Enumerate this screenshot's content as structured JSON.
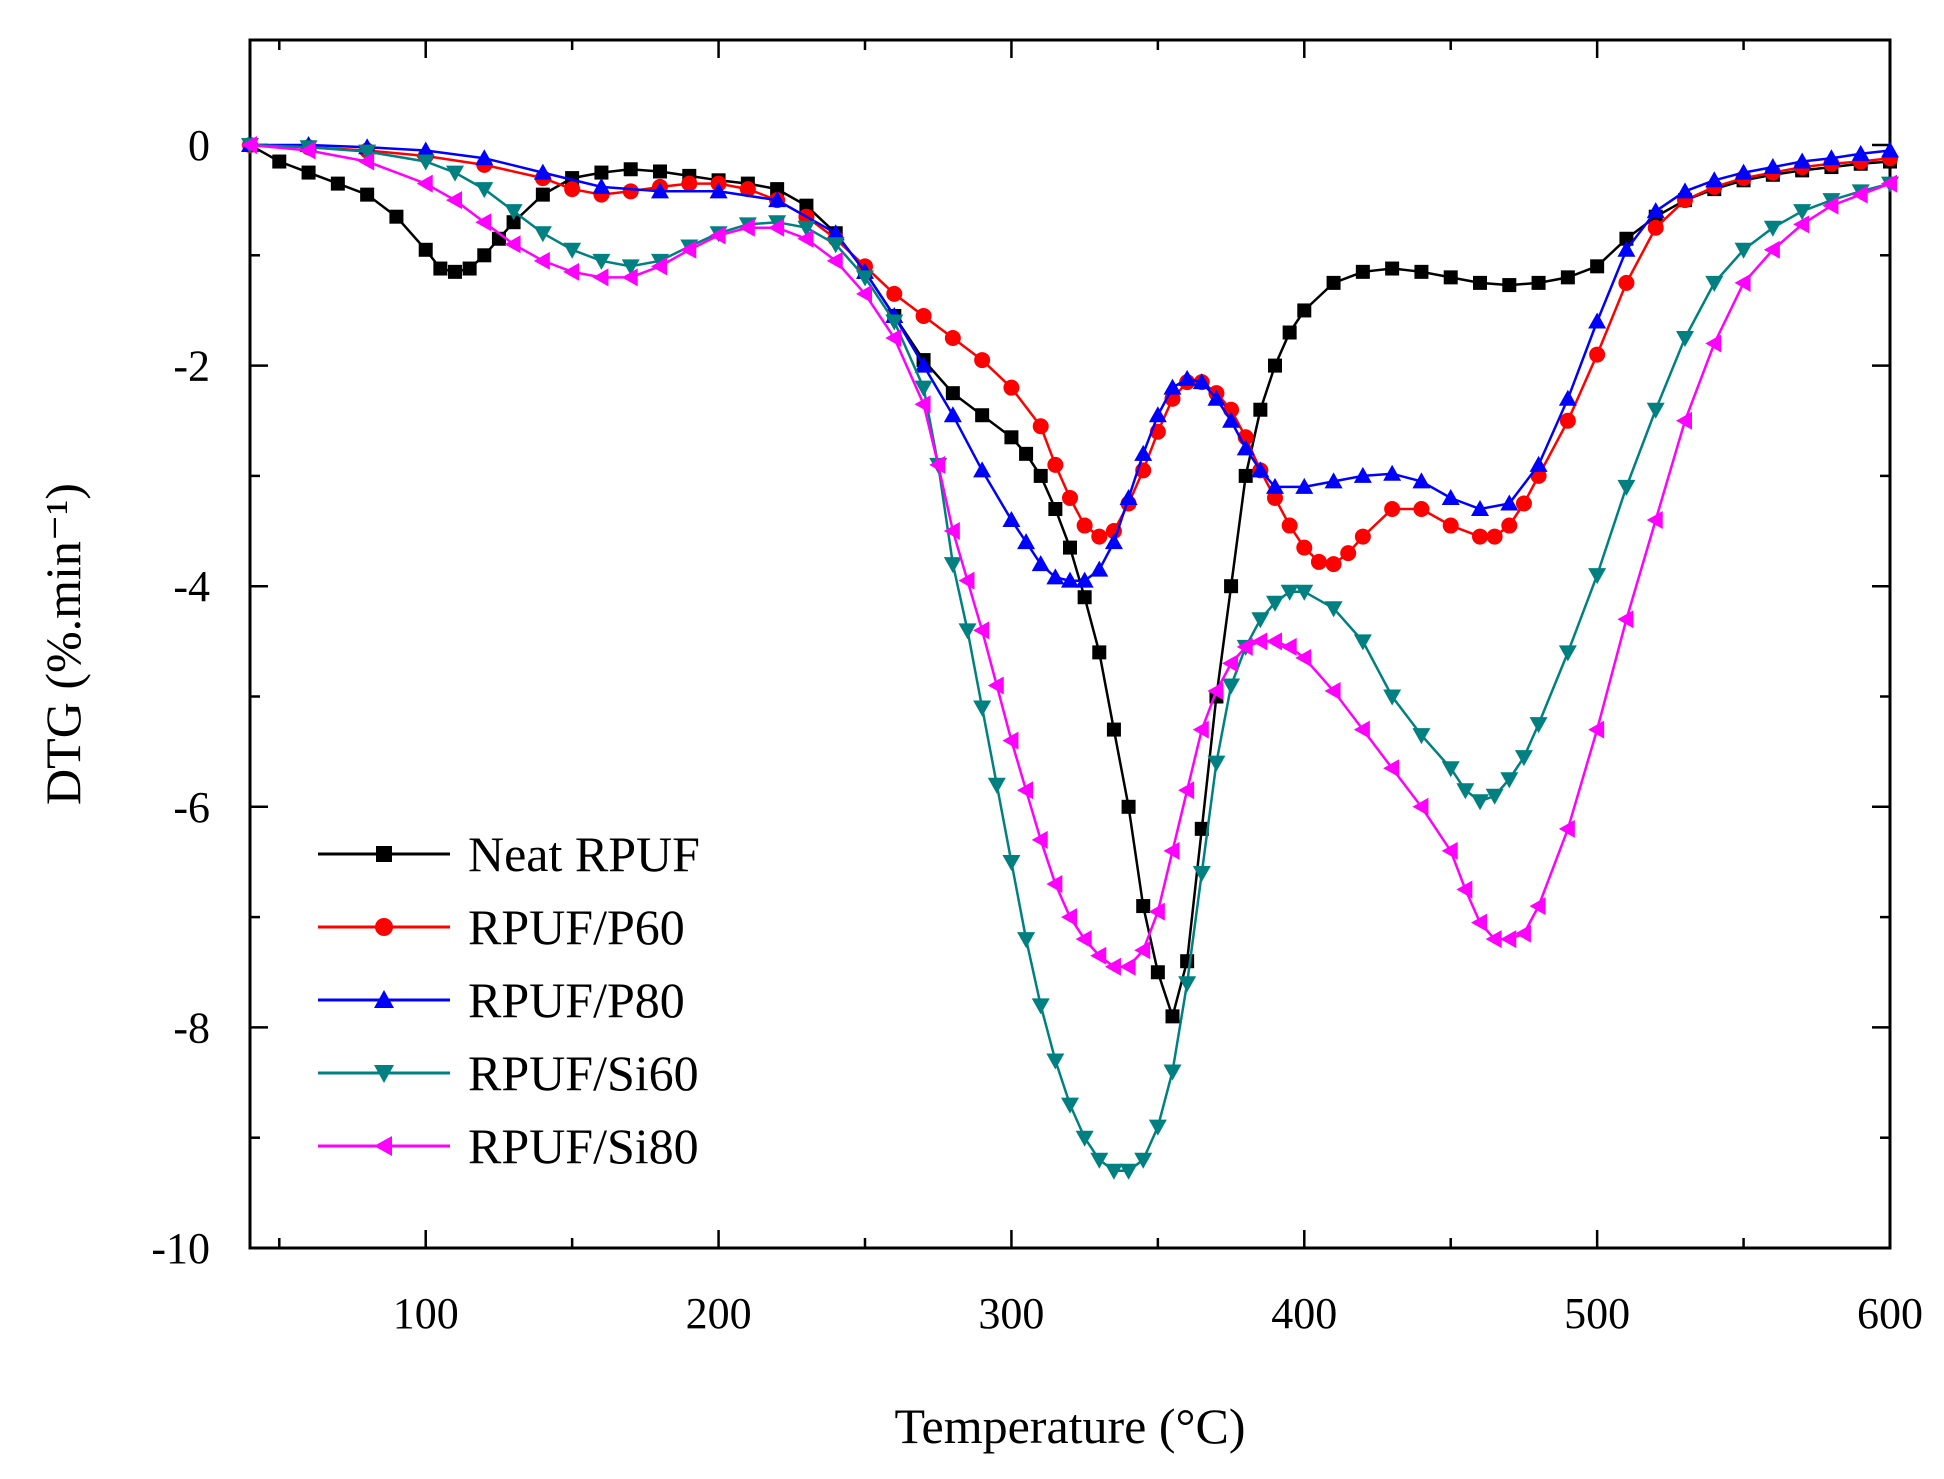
{
  "chart_data": {
    "type": "line",
    "title": "",
    "xlabel": "Temperature (°C)",
    "ylabel": "DTG (%.min⁻¹)",
    "xlim": [
      40,
      600
    ],
    "ylim": [
      -10,
      1
    ],
    "xticks": [
      "100",
      "200",
      "300",
      "400",
      "500",
      "600"
    ],
    "yticks": [
      "0",
      "-2",
      "-4",
      "-6",
      "-8",
      "-10"
    ],
    "legend_position": "bottom-left",
    "series": [
      {
        "name": "Neat RPUF",
        "color": "#000000",
        "marker": "square",
        "x": [
          40,
          50,
          60,
          70,
          80,
          90,
          100,
          105,
          110,
          115,
          120,
          125,
          130,
          140,
          150,
          160,
          170,
          180,
          190,
          200,
          210,
          220,
          230,
          240,
          250,
          260,
          270,
          280,
          290,
          300,
          305,
          310,
          315,
          320,
          325,
          330,
          335,
          340,
          345,
          350,
          355,
          360,
          365,
          370,
          375,
          380,
          385,
          390,
          395,
          400,
          410,
          420,
          430,
          440,
          450,
          460,
          470,
          480,
          490,
          500,
          510,
          520,
          530,
          540,
          550,
          560,
          570,
          580,
          590,
          600
        ],
        "y": [
          0,
          -0.15,
          -0.25,
          -0.35,
          -0.45,
          -0.65,
          -0.95,
          -1.12,
          -1.15,
          -1.12,
          -1.0,
          -0.85,
          -0.7,
          -0.45,
          -0.3,
          -0.25,
          -0.22,
          -0.24,
          -0.28,
          -0.32,
          -0.35,
          -0.4,
          -0.55,
          -0.8,
          -1.15,
          -1.55,
          -1.95,
          -2.25,
          -2.45,
          -2.65,
          -2.8,
          -3.0,
          -3.3,
          -3.65,
          -4.1,
          -4.6,
          -5.3,
          -6.0,
          -6.9,
          -7.5,
          -7.9,
          -7.4,
          -6.2,
          -5.0,
          -4.0,
          -3.0,
          -2.4,
          -2.0,
          -1.7,
          -1.5,
          -1.25,
          -1.15,
          -1.12,
          -1.15,
          -1.2,
          -1.25,
          -1.27,
          -1.25,
          -1.2,
          -1.1,
          -0.85,
          -0.65,
          -0.5,
          -0.4,
          -0.32,
          -0.27,
          -0.23,
          -0.2,
          -0.17,
          -0.15
        ]
      },
      {
        "name": "RPUF/P60",
        "color": "#ff0000",
        "marker": "circle",
        "x": [
          40,
          60,
          80,
          100,
          120,
          140,
          150,
          160,
          170,
          180,
          190,
          200,
          210,
          220,
          230,
          240,
          250,
          260,
          270,
          280,
          290,
          300,
          310,
          315,
          320,
          325,
          330,
          335,
          340,
          345,
          350,
          355,
          360,
          365,
          370,
          375,
          380,
          385,
          390,
          395,
          400,
          405,
          410,
          415,
          420,
          430,
          440,
          450,
          460,
          465,
          470,
          475,
          480,
          490,
          500,
          510,
          520,
          530,
          540,
          550,
          560,
          570,
          580,
          590,
          600
        ],
        "y": [
          0,
          -0.02,
          -0.05,
          -0.1,
          -0.18,
          -0.3,
          -0.4,
          -0.45,
          -0.42,
          -0.38,
          -0.35,
          -0.35,
          -0.4,
          -0.5,
          -0.65,
          -0.85,
          -1.1,
          -1.35,
          -1.55,
          -1.75,
          -1.95,
          -2.2,
          -2.55,
          -2.9,
          -3.2,
          -3.45,
          -3.55,
          -3.5,
          -3.25,
          -2.95,
          -2.6,
          -2.3,
          -2.15,
          -2.15,
          -2.25,
          -2.4,
          -2.65,
          -2.95,
          -3.2,
          -3.45,
          -3.65,
          -3.78,
          -3.8,
          -3.7,
          -3.55,
          -3.3,
          -3.3,
          -3.45,
          -3.55,
          -3.55,
          -3.45,
          -3.25,
          -3.0,
          -2.5,
          -1.9,
          -1.25,
          -0.75,
          -0.5,
          -0.38,
          -0.3,
          -0.25,
          -0.2,
          -0.17,
          -0.15,
          -0.12
        ]
      },
      {
        "name": "RPUF/P80",
        "color": "#0000ff",
        "marker": "triangle-up",
        "x": [
          40,
          60,
          80,
          100,
          120,
          140,
          160,
          180,
          200,
          220,
          240,
          250,
          260,
          270,
          280,
          290,
          300,
          305,
          310,
          315,
          320,
          325,
          330,
          335,
          340,
          345,
          350,
          355,
          360,
          365,
          370,
          375,
          380,
          385,
          390,
          400,
          410,
          420,
          430,
          440,
          450,
          460,
          470,
          480,
          490,
          500,
          510,
          520,
          530,
          540,
          550,
          560,
          570,
          580,
          590,
          600
        ],
        "y": [
          0,
          0,
          -0.02,
          -0.05,
          -0.12,
          -0.25,
          -0.38,
          -0.42,
          -0.42,
          -0.5,
          -0.8,
          -1.15,
          -1.55,
          -2.0,
          -2.45,
          -2.95,
          -3.4,
          -3.6,
          -3.8,
          -3.92,
          -3.95,
          -3.95,
          -3.85,
          -3.6,
          -3.2,
          -2.8,
          -2.45,
          -2.2,
          -2.12,
          -2.15,
          -2.3,
          -2.5,
          -2.75,
          -2.95,
          -3.1,
          -3.1,
          -3.05,
          -3.0,
          -2.98,
          -3.05,
          -3.2,
          -3.3,
          -3.25,
          -2.9,
          -2.3,
          -1.6,
          -0.95,
          -0.6,
          -0.42,
          -0.32,
          -0.25,
          -0.2,
          -0.15,
          -0.12,
          -0.08,
          -0.05
        ]
      },
      {
        "name": "RPUF/Si60",
        "color": "#008080",
        "marker": "triangle-down",
        "x": [
          40,
          60,
          80,
          100,
          110,
          120,
          130,
          140,
          150,
          160,
          170,
          180,
          190,
          200,
          210,
          220,
          230,
          240,
          250,
          260,
          270,
          275,
          280,
          285,
          290,
          295,
          300,
          305,
          310,
          315,
          320,
          325,
          330,
          335,
          340,
          345,
          350,
          355,
          360,
          365,
          370,
          375,
          380,
          385,
          390,
          395,
          400,
          410,
          420,
          430,
          440,
          450,
          455,
          460,
          465,
          470,
          475,
          480,
          490,
          500,
          510,
          520,
          530,
          540,
          550,
          560,
          570,
          580,
          590,
          600
        ],
        "y": [
          0,
          -0.02,
          -0.06,
          -0.15,
          -0.25,
          -0.4,
          -0.6,
          -0.8,
          -0.95,
          -1.05,
          -1.1,
          -1.05,
          -0.92,
          -0.8,
          -0.72,
          -0.7,
          -0.75,
          -0.9,
          -1.2,
          -1.6,
          -2.2,
          -2.9,
          -3.8,
          -4.4,
          -5.1,
          -5.8,
          -6.5,
          -7.2,
          -7.8,
          -8.3,
          -8.7,
          -9.0,
          -9.2,
          -9.3,
          -9.3,
          -9.2,
          -8.9,
          -8.4,
          -7.6,
          -6.6,
          -5.6,
          -4.9,
          -4.55,
          -4.3,
          -4.15,
          -4.05,
          -4.05,
          -4.2,
          -4.5,
          -5.0,
          -5.35,
          -5.65,
          -5.85,
          -5.95,
          -5.9,
          -5.75,
          -5.55,
          -5.25,
          -4.6,
          -3.9,
          -3.1,
          -2.4,
          -1.75,
          -1.25,
          -0.95,
          -0.75,
          -0.6,
          -0.5,
          -0.42,
          -0.35
        ]
      },
      {
        "name": "RPUF/Si80",
        "color": "#ff00ff",
        "marker": "triangle-left",
        "x": [
          40,
          60,
          80,
          100,
          110,
          120,
          130,
          140,
          150,
          160,
          170,
          180,
          190,
          200,
          210,
          220,
          230,
          240,
          250,
          260,
          270,
          275,
          280,
          285,
          290,
          295,
          300,
          305,
          310,
          315,
          320,
          325,
          330,
          335,
          340,
          345,
          350,
          355,
          360,
          365,
          370,
          375,
          380,
          385,
          390,
          395,
          400,
          410,
          420,
          430,
          440,
          450,
          455,
          460,
          465,
          470,
          475,
          480,
          490,
          500,
          510,
          520,
          530,
          540,
          550,
          560,
          570,
          580,
          590,
          600
        ],
        "y": [
          0,
          -0.05,
          -0.15,
          -0.35,
          -0.5,
          -0.7,
          -0.9,
          -1.05,
          -1.15,
          -1.2,
          -1.2,
          -1.1,
          -0.95,
          -0.82,
          -0.75,
          -0.75,
          -0.85,
          -1.05,
          -1.35,
          -1.75,
          -2.35,
          -2.9,
          -3.5,
          -3.95,
          -4.4,
          -4.9,
          -5.4,
          -5.85,
          -6.3,
          -6.7,
          -7.0,
          -7.2,
          -7.35,
          -7.45,
          -7.45,
          -7.3,
          -6.95,
          -6.4,
          -5.85,
          -5.3,
          -4.95,
          -4.7,
          -4.55,
          -4.5,
          -4.5,
          -4.55,
          -4.65,
          -4.95,
          -5.3,
          -5.65,
          -6.0,
          -6.4,
          -6.75,
          -7.05,
          -7.2,
          -7.2,
          -7.15,
          -6.9,
          -6.2,
          -5.3,
          -4.3,
          -3.4,
          -2.5,
          -1.8,
          -1.25,
          -0.95,
          -0.72,
          -0.55,
          -0.45,
          -0.35
        ]
      }
    ]
  }
}
